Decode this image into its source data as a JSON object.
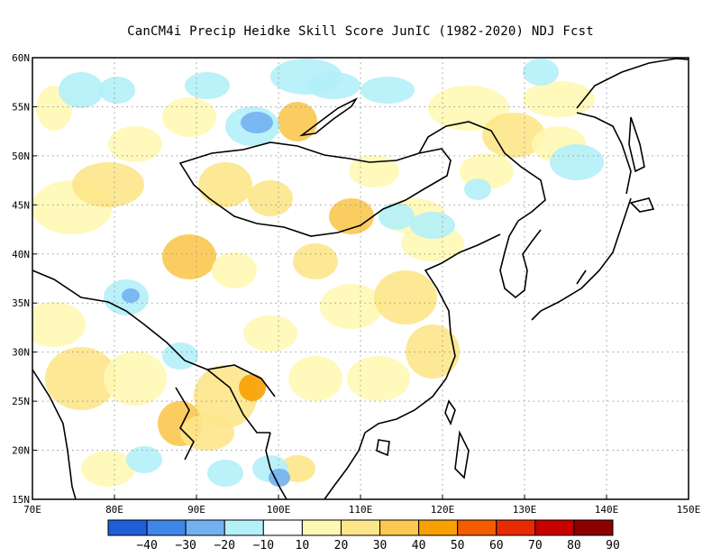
{
  "title": "CanCM4i Precip Heidke Skill Score JunIC (1982-2020) NDJ Fcst",
  "map": {
    "lon_range": [
      70,
      150
    ],
    "lat_range": [
      15,
      60
    ],
    "lon_ticks": [
      "70E",
      "80E",
      "90E",
      "100E",
      "110E",
      "120E",
      "130E",
      "140E",
      "150E"
    ],
    "lat_ticks": [
      "15N",
      "20N",
      "25N",
      "30N",
      "35N",
      "40N",
      "45N",
      "50N",
      "55N",
      "60N"
    ],
    "grid": "dotted"
  },
  "colorbar": {
    "labels": [
      "-40",
      "-30",
      "-20",
      "-10",
      "10",
      "20",
      "30",
      "40",
      "50",
      "60",
      "70",
      "80",
      "90"
    ],
    "colors": [
      "#1e5fd8",
      "#3f86e8",
      "#72b1f0",
      "#b4f0f8",
      "#ffffff",
      "#fff8b4",
      "#fde68a",
      "#fbc850",
      "#f7a000",
      "#f35c00",
      "#e82a00",
      "#c80000",
      "#8c0000"
    ]
  }
}
